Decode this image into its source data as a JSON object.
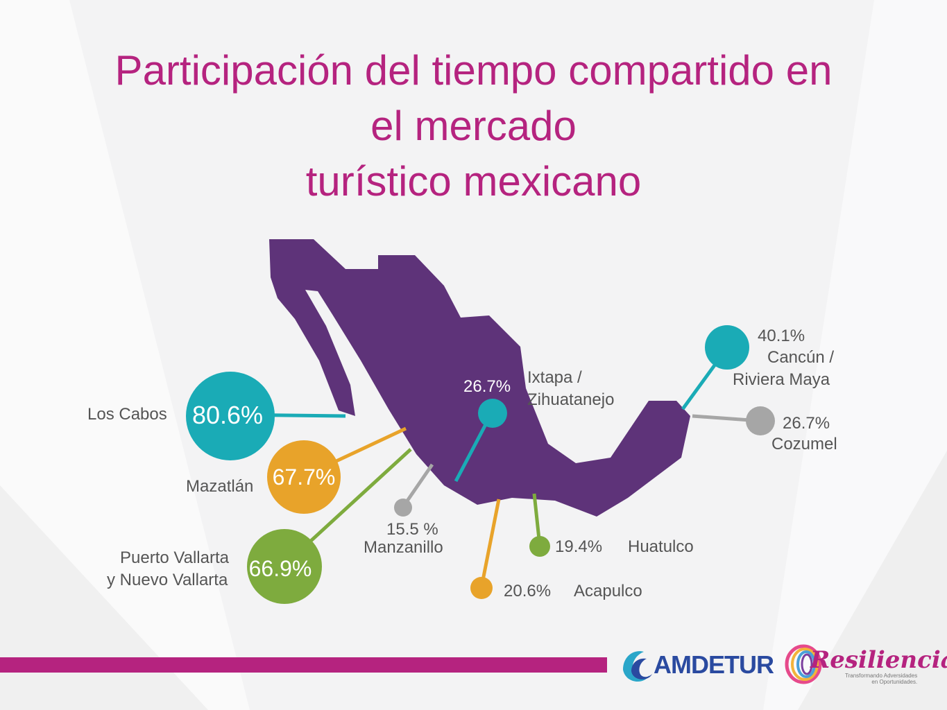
{
  "title": {
    "line1": "Participación del tiempo compartido en",
    "line2": "el mercado",
    "line3": "turístico mexicano"
  },
  "colors": {
    "title": "#b5237f",
    "map": "#5e3379",
    "teal": "#1aabb6",
    "orange": "#e8a32a",
    "green": "#7eab3e",
    "gray": "#a6a6a6",
    "bar": "#b5237f"
  },
  "destinations": {
    "los_cabos": {
      "name": "Los Cabos",
      "value": "80.6%"
    },
    "mazatlan": {
      "name": "Mazatlán",
      "value": "67.7%"
    },
    "puerto_vallarta": {
      "name_line1": "Puerto Vallarta",
      "name_line2": "y Nuevo Vallarta",
      "value": "66.9%"
    },
    "manzanillo": {
      "name": "Manzanillo",
      "value": "15.5 %"
    },
    "ixtapa": {
      "name_line1": "Ixtapa /",
      "name_line2": "Zihuatanejo",
      "value": "26.7%"
    },
    "acapulco": {
      "name": "Acapulco",
      "value": "20.6%"
    },
    "huatulco": {
      "name": "Huatulco",
      "value": "19.4%"
    },
    "cancun": {
      "name_line1": "Cancún /",
      "name_line2": "Riviera Maya",
      "value": "40.1%"
    },
    "cozumel": {
      "name": "Cozumel",
      "value": "26.7%"
    }
  },
  "logos": {
    "amdetur": "AMDETUR",
    "resiliencia": "Resiliencia",
    "resiliencia_tagline_1": "Transformando Adversidades",
    "resiliencia_tagline_2": "en Oportunidades."
  }
}
